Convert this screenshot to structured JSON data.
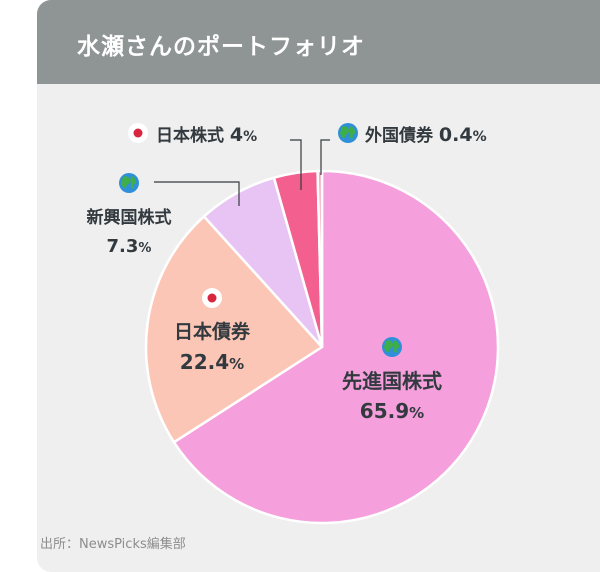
{
  "title": "水瀬さんのポートフォリオ",
  "source": "出所：NewsPicks編集部",
  "chart_data": {
    "type": "pie",
    "slices": [
      {
        "name": "先進国株式",
        "value": 65.9,
        "unit": "%",
        "icon": "globe-icon",
        "color": "#f5a0dc"
      },
      {
        "name": "日本債券",
        "value": 22.4,
        "unit": "%",
        "icon": "japan-flag-icon",
        "color": "#fbc6b5"
      },
      {
        "name": "新興国株式",
        "value": 7.3,
        "unit": "%",
        "icon": "globe-icon",
        "color": "#e8c4f4"
      },
      {
        "name": "日本株式",
        "value": 4,
        "unit": "%",
        "icon": "japan-flag-icon",
        "color": "#f3608f"
      },
      {
        "name": "外国債券",
        "value": 0.4,
        "unit": "%",
        "icon": "globe-icon",
        "color": "#f7a8c2"
      }
    ]
  }
}
